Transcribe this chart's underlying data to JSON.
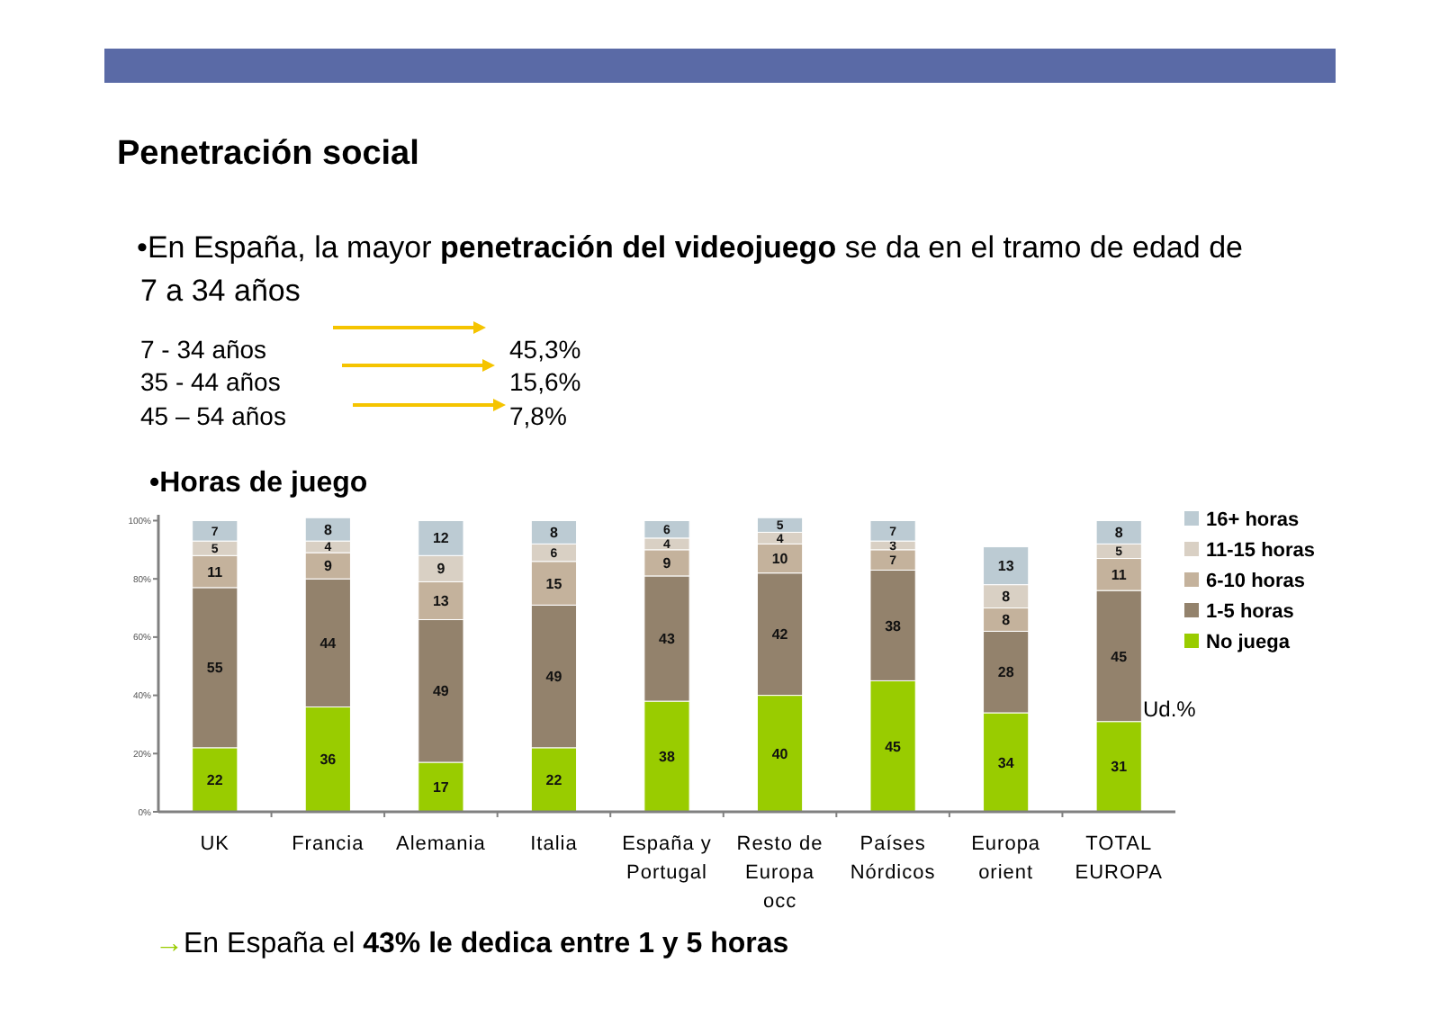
{
  "chart_data": {
    "type": "bar",
    "stacked": true,
    "title": "Penetración social",
    "subtitle": "•Horas de juego",
    "categories": [
      "UK",
      "Francia",
      "Alemania",
      "Italia",
      "España y Portugal",
      "Resto de Europa occ",
      "Países Nórdicos",
      "Europa orient",
      "TOTAL EUROPA"
    ],
    "series": [
      {
        "name": "No juega",
        "color": "#99cc00",
        "values": [
          22,
          36,
          17,
          22,
          38,
          40,
          45,
          34,
          31
        ]
      },
      {
        "name": "1-5 horas",
        "color": "#93826c",
        "values": [
          55,
          44,
          49,
          49,
          43,
          42,
          38,
          28,
          45
        ]
      },
      {
        "name": "6-10 horas",
        "color": "#c4b29c",
        "values": [
          11,
          9,
          13,
          15,
          9,
          10,
          7,
          8,
          11
        ]
      },
      {
        "name": "11-15 horas",
        "color": "#d9d0c4",
        "values": [
          5,
          4,
          9,
          6,
          4,
          4,
          3,
          8,
          5
        ]
      },
      {
        "name": "16+ horas",
        "color": "#bccbd3",
        "values": [
          7,
          8,
          12,
          8,
          6,
          5,
          7,
          13,
          8
        ]
      }
    ],
    "ylim": [
      0,
      102
    ],
    "yticks": [
      {
        "value": 0,
        "label": "0%"
      },
      {
        "value": 20,
        "label": "20%"
      },
      {
        "value": 40,
        "label": "40%"
      },
      {
        "value": 60,
        "label": "60%"
      },
      {
        "value": 80,
        "label": "80%"
      },
      {
        "value": 100,
        "label": "100%"
      }
    ],
    "data_labels": true,
    "legend": "right",
    "grid": false,
    "annotations": [
      "•En España, la mayor ",
      "penetración del videojuego",
      " se da en el tramo de edad de",
      "7 a 34 años",
      "7 - 34 años",
      "45,3%",
      "35 - 44 años",
      "15,6%",
      "45 – 54 años",
      "7,8%",
      "Ud.%",
      "→",
      "En España el ",
      "43% le dedica entre 1 y 5 horas"
    ]
  }
}
